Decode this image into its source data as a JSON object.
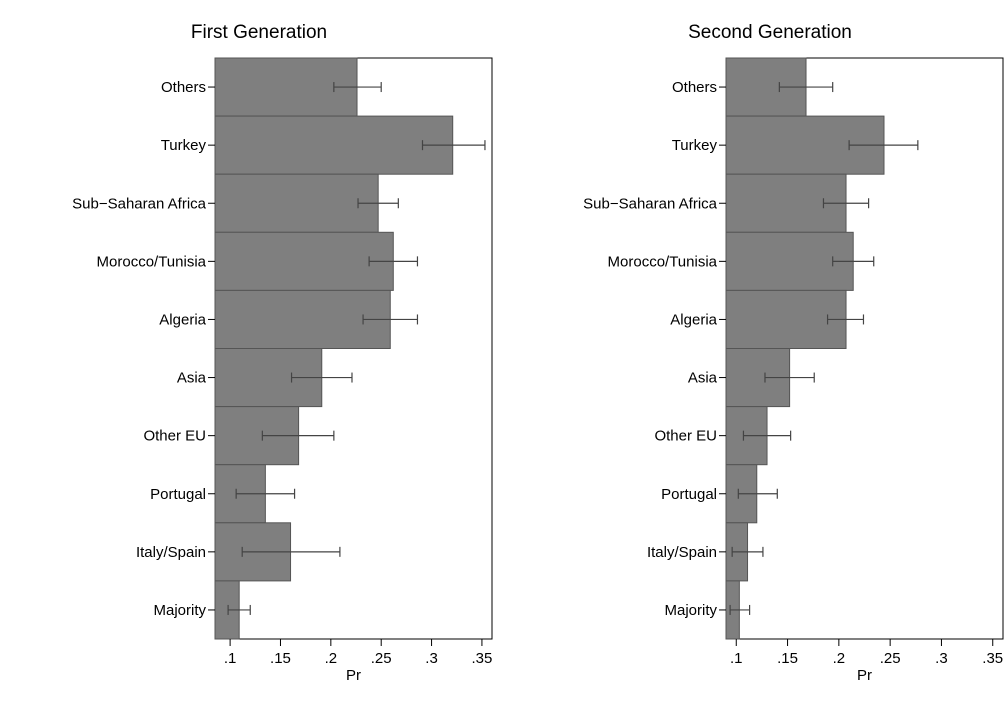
{
  "chart_data": [
    {
      "type": "bar",
      "orientation": "horizontal",
      "title": "First Generation",
      "xlabel": "Pr",
      "ylabel": "",
      "xlim": [
        0.085,
        0.36
      ],
      "xticks": [
        0.1,
        0.15,
        0.2,
        0.25,
        0.3,
        0.35
      ],
      "xtick_labels": [
        ".1",
        ".15",
        ".2",
        ".25",
        ".3",
        ".35"
      ],
      "bar_color": "#7f7f7f",
      "categories": [
        "Others",
        "Turkey",
        "Sub−Saharan Africa",
        "Morocco/Tunisia",
        "Algeria",
        "Asia",
        "Other EU",
        "Portugal",
        "Italy/Spain",
        "Majority"
      ],
      "values": [
        0.226,
        0.321,
        0.247,
        0.262,
        0.259,
        0.191,
        0.168,
        0.135,
        0.16,
        0.109
      ],
      "ci_low": [
        0.203,
        0.291,
        0.227,
        0.238,
        0.232,
        0.161,
        0.132,
        0.106,
        0.112,
        0.098
      ],
      "ci_high": [
        0.25,
        0.353,
        0.267,
        0.286,
        0.286,
        0.221,
        0.203,
        0.164,
        0.209,
        0.12
      ]
    },
    {
      "type": "bar",
      "orientation": "horizontal",
      "title": "Second Generation",
      "xlabel": "Pr",
      "ylabel": "",
      "xlim": [
        0.09,
        0.36
      ],
      "xticks": [
        0.1,
        0.15,
        0.2,
        0.25,
        0.3,
        0.35
      ],
      "xtick_labels": [
        ".1",
        ".15",
        ".2",
        ".25",
        ".3",
        ".35"
      ],
      "bar_color": "#7f7f7f",
      "categories": [
        "Others",
        "Turkey",
        "Sub−Saharan Africa",
        "Morocco/Tunisia",
        "Algeria",
        "Asia",
        "Other EU",
        "Portugal",
        "Italy/Spain",
        "Majority"
      ],
      "values": [
        0.168,
        0.244,
        0.207,
        0.214,
        0.207,
        0.152,
        0.13,
        0.12,
        0.111,
        0.103
      ],
      "ci_low": [
        0.142,
        0.21,
        0.185,
        0.194,
        0.189,
        0.128,
        0.107,
        0.102,
        0.096,
        0.094
      ],
      "ci_high": [
        0.194,
        0.277,
        0.229,
        0.234,
        0.224,
        0.176,
        0.153,
        0.14,
        0.126,
        0.113
      ]
    }
  ]
}
